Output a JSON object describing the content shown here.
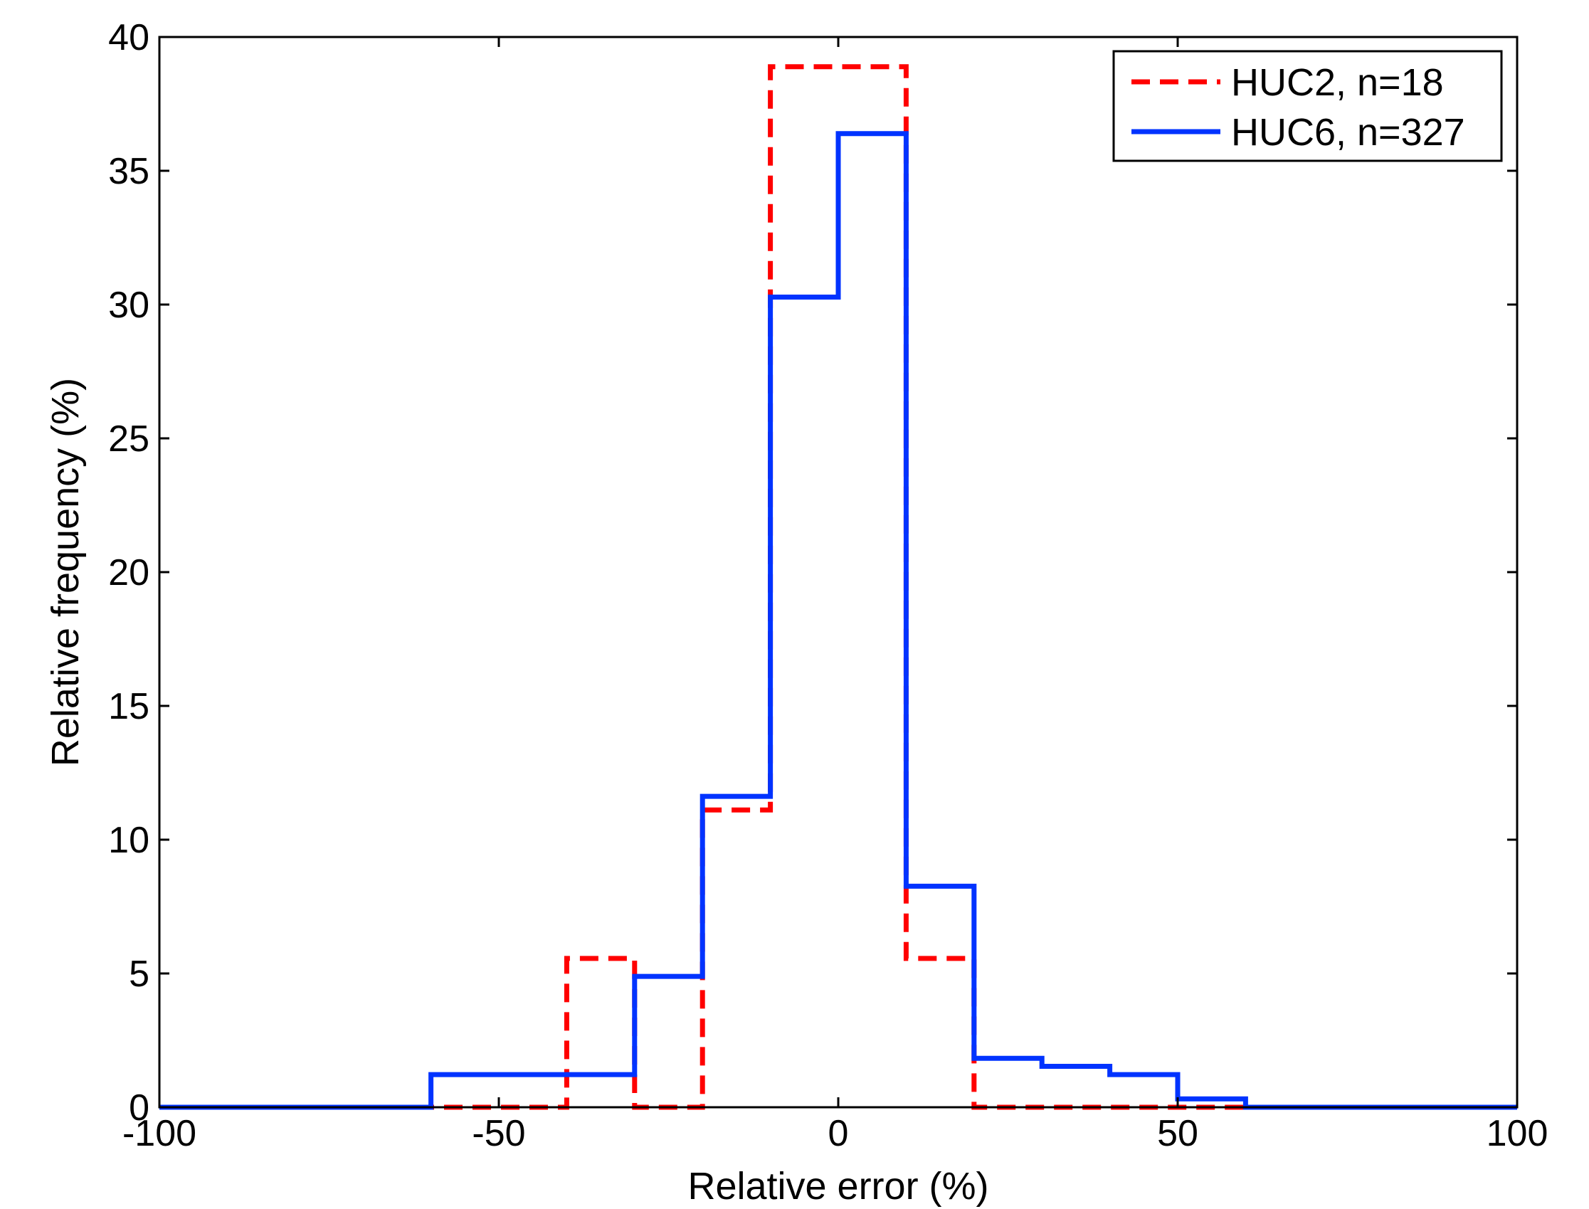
{
  "chart_data": {
    "type": "histogram",
    "xlabel": "Relative error (%)",
    "ylabel": "Relative frequency (%)",
    "xlim": [
      -100,
      100
    ],
    "ylim": [
      0,
      40
    ],
    "xticks": [
      -100,
      -50,
      0,
      50,
      100
    ],
    "yticks": [
      0,
      5,
      10,
      15,
      20,
      25,
      30,
      35,
      40
    ],
    "bin_edges": [
      -100,
      -90,
      -80,
      -70,
      -60,
      -50,
      -40,
      -30,
      -20,
      -10,
      0,
      10,
      20,
      30,
      40,
      50,
      60,
      70,
      80,
      90,
      100
    ],
    "grid": false,
    "legend_position": "top-right",
    "series": [
      {
        "name": "HUC2, n=18",
        "color": "#ff0000",
        "line_style": "dashed",
        "values": [
          0,
          0,
          0,
          0,
          0,
          0,
          5.56,
          0,
          11.11,
          38.89,
          38.89,
          5.56,
          0,
          0,
          0,
          0,
          0,
          0,
          0,
          0
        ]
      },
      {
        "name": "HUC6, n=327",
        "color": "#0033ff",
        "line_style": "solid",
        "values": [
          0,
          0,
          0,
          0,
          1.22,
          1.22,
          1.22,
          4.89,
          11.62,
          30.28,
          36.39,
          8.26,
          1.83,
          1.53,
          1.22,
          0.31,
          0,
          0,
          0,
          0
        ]
      }
    ]
  }
}
